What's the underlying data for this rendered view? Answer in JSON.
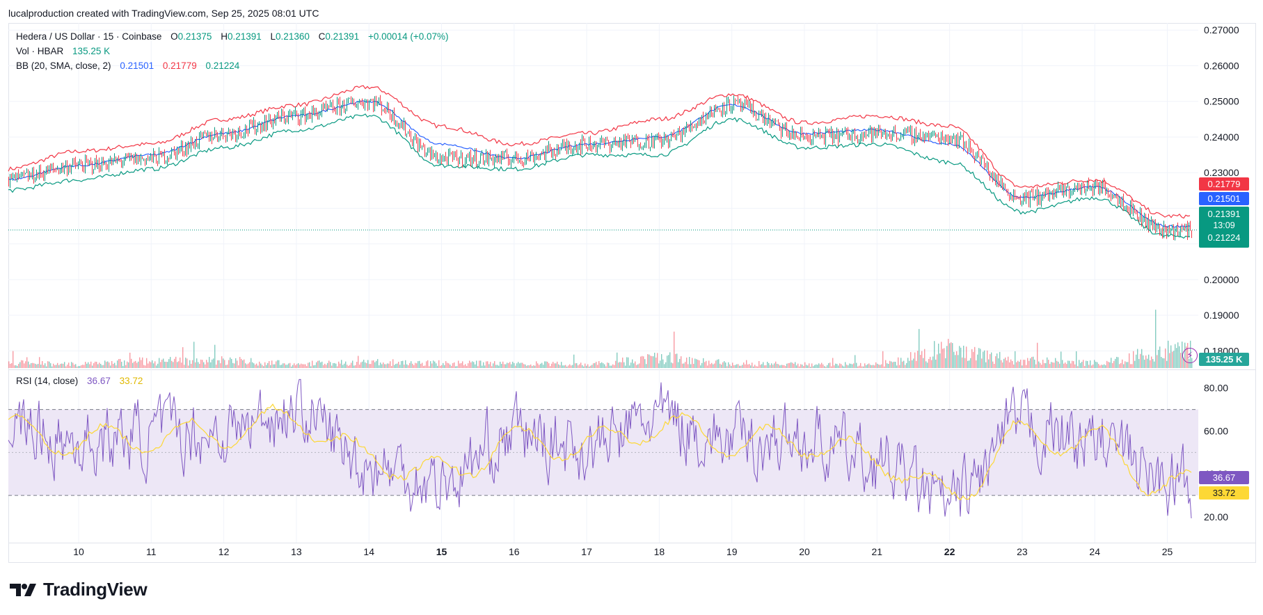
{
  "caption": "lucalproduction created with TradingView.com, Sep 25, 2025 08:01 UTC",
  "legend": {
    "symbol": "Hedera / US Dollar · 15 · Coinbase",
    "o_label": "O",
    "o_value": "0.21375",
    "h_label": "H",
    "h_value": "0.21391",
    "l_label": "L",
    "l_value": "0.21360",
    "c_label": "C",
    "c_value": "0.21391",
    "change": "+0.00014 (+0.07%)",
    "vol_label": "Vol · HBAR",
    "vol_value": "135.25 K",
    "bb_label": "BB (20, SMA, close, 2)",
    "bb_basis": "0.21501",
    "bb_upper": "0.21779",
    "bb_lower": "0.21224",
    "rsi_label": "RSI (14, close)",
    "rsi_value": "36.67",
    "rsi_ma_value": "33.72"
  },
  "price_tags": {
    "upper": "0.21779",
    "basis": "0.21501",
    "last": "0.21391",
    "countdown": "13:09",
    "lower": "0.21224",
    "volume": "135.25 K",
    "rsi": "36.67",
    "rsi_ma": "33.72"
  },
  "brand": "TradingView",
  "colors": {
    "up": "#089981",
    "down": "#f23645",
    "bb_basis": "#2962ff",
    "bb_upper": "#f23645",
    "bb_lower": "#089981",
    "rsi": "#7e57c2",
    "rsi_ma": "#fdd835",
    "rsi_band": "#ede7f6"
  },
  "chart_data": [
    {
      "type": "line",
      "name": "price",
      "title": "Hedera / US Dollar · 15 · Coinbase",
      "x": [
        "9",
        "10",
        "11",
        "12",
        "13",
        "14",
        "15",
        "16",
        "17",
        "18",
        "19",
        "20",
        "21",
        "22",
        "23",
        "24",
        "25"
      ],
      "x_ticks": [
        "10",
        "11",
        "12",
        "13",
        "14",
        "15",
        "16",
        "17",
        "18",
        "19",
        "20",
        "21",
        "22",
        "23",
        "24",
        "25"
      ],
      "ylim": [
        0.175,
        0.272
      ],
      "y_ticks": [
        "0.27000",
        "0.26000",
        "0.25000",
        "0.24000",
        "0.23000",
        "0.20000",
        "0.19000",
        "0.18000"
      ],
      "series": [
        {
          "name": "close",
          "values": [
            0.228,
            0.232,
            0.234,
            0.241,
            0.246,
            0.25,
            0.234,
            0.234,
            0.238,
            0.239,
            0.249,
            0.24,
            0.241,
            0.24,
            0.223,
            0.226,
            0.2139
          ]
        },
        {
          "name": "0.21779",
          "values": [
            0.231,
            0.236,
            0.238,
            0.245,
            0.249,
            0.254,
            0.243,
            0.238,
            0.241,
            0.245,
            0.252,
            0.244,
            0.246,
            0.243,
            0.226,
            0.228,
            0.2178
          ]
        },
        {
          "name": "0.21501",
          "values": [
            0.228,
            0.232,
            0.235,
            0.241,
            0.246,
            0.25,
            0.238,
            0.234,
            0.238,
            0.24,
            0.249,
            0.241,
            0.242,
            0.238,
            0.223,
            0.226,
            0.215
          ]
        },
        {
          "name": "0.21224",
          "values": [
            0.225,
            0.228,
            0.231,
            0.237,
            0.242,
            0.246,
            0.232,
            0.231,
            0.235,
            0.235,
            0.245,
            0.237,
            0.238,
            0.233,
            0.219,
            0.223,
            0.2122
          ]
        }
      ],
      "last_price_line": 0.21391,
      "grid": true,
      "legend": "top-left"
    },
    {
      "type": "bar",
      "name": "volume",
      "title": "Vol · HBAR",
      "x": [
        "9",
        "10",
        "11",
        "12",
        "13",
        "14",
        "15",
        "16",
        "17",
        "18",
        "19",
        "20",
        "21",
        "22",
        "23",
        "24",
        "25"
      ],
      "values": [
        40,
        30,
        55,
        60,
        35,
        45,
        40,
        35,
        30,
        80,
        40,
        30,
        30,
        150,
        60,
        40,
        135.25
      ],
      "unit": "K"
    },
    {
      "type": "line",
      "name": "rsi",
      "title": "RSI (14, close)",
      "x_ticks": [
        "10",
        "11",
        "12",
        "13",
        "14",
        "15",
        "16",
        "17",
        "18",
        "19",
        "20",
        "21",
        "22",
        "23",
        "24",
        "25"
      ],
      "ylim": [
        8,
        88
      ],
      "y_ticks": [
        "80.00",
        "60.00",
        "40.00",
        "20.00"
      ],
      "bands": [
        70,
        50,
        30
      ],
      "series": [
        {
          "name": "36.67",
          "values": [
            62,
            55,
            58,
            60,
            70,
            44,
            36,
            58,
            52,
            66,
            55,
            56,
            45,
            25,
            62,
            55,
            36.67
          ]
        },
        {
          "name": "33.72",
          "values": [
            60,
            55,
            57,
            59,
            66,
            47,
            40,
            55,
            53,
            63,
            55,
            55,
            47,
            30,
            58,
            55,
            33.72
          ]
        }
      ]
    }
  ]
}
